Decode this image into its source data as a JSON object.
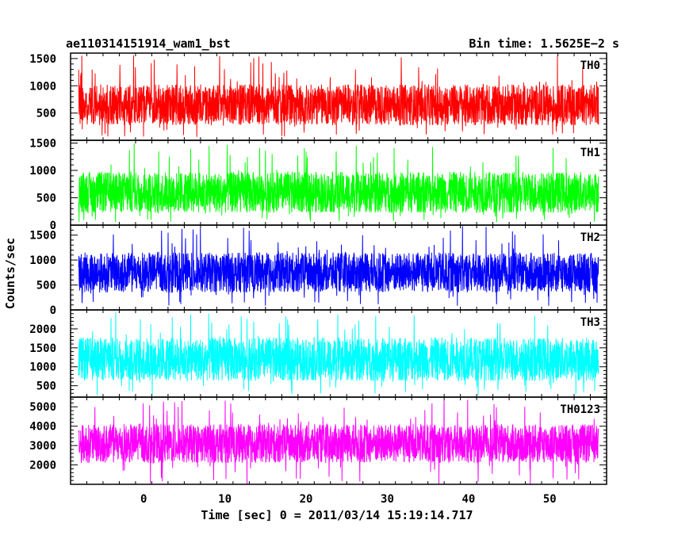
{
  "header": {
    "left_title": "ae110314151914_wam1_bst",
    "right_title": "Bin time: 1.5625E−2 s"
  },
  "axes": {
    "xlabel": "Time [sec] 0 = 2011/03/14 15:19:14.717",
    "ylabel": "Counts/sec"
  },
  "chart_data": {
    "type": "line",
    "title": "ae110314151914_wam1_bst",
    "subtitle": "Bin time: 1.5625E−2 s",
    "xlabel": "Time [sec] 0 = 2011/03/14 15:19:14.717",
    "ylabel": "Counts/sec",
    "xlim": [
      -9,
      57
    ],
    "x_ticks": [
      0,
      10,
      20,
      30,
      40,
      50
    ],
    "x_range_data": [
      -8,
      56
    ],
    "bin_time": 0.015625,
    "panels": [
      {
        "name": "TH0",
        "color": "#ff0000",
        "ylim": [
          0,
          1600
        ],
        "y_ticks": [
          500,
          1000,
          1500
        ],
        "y_tick_labels": [
          "500",
          "1000",
          "1500"
        ],
        "mean": 650,
        "band_low": 300,
        "band_high": 1050,
        "min": 50,
        "max": 1560
      },
      {
        "name": "TH1",
        "color": "#00ff00",
        "ylim": [
          0,
          1550
        ],
        "y_ticks": [
          0,
          500,
          1000,
          1500
        ],
        "y_tick_labels": [
          "0",
          "500",
          "1000",
          "1500"
        ],
        "mean": 600,
        "band_low": 250,
        "band_high": 1000,
        "min": 50,
        "max": 1500
      },
      {
        "name": "TH2",
        "color": "#0000ff",
        "ylim": [
          0,
          1700
        ],
        "y_ticks": [
          0,
          500,
          1000,
          1500
        ],
        "y_tick_labels": [
          "0",
          "500",
          "1000",
          "1500"
        ],
        "mean": 750,
        "band_low": 350,
        "band_high": 1150,
        "min": 80,
        "max": 1680
      },
      {
        "name": "TH3",
        "color": "#00ffff",
        "ylim": [
          200,
          2500
        ],
        "y_ticks": [
          500,
          1000,
          1500,
          2000
        ],
        "y_tick_labels": [
          "500",
          "1000",
          "1500",
          "2000"
        ],
        "mean": 1200,
        "band_low": 650,
        "band_high": 1800,
        "min": 250,
        "max": 2450
      },
      {
        "name": "TH0123",
        "color": "#ff00ff",
        "ylim": [
          1000,
          5500
        ],
        "y_ticks": [
          2000,
          3000,
          4000,
          5000
        ],
        "y_tick_labels": [
          "2000",
          "3000",
          "4000",
          "5000"
        ],
        "mean": 3100,
        "band_low": 2100,
        "band_high": 4100,
        "min": 1000,
        "max": 5400
      }
    ]
  }
}
